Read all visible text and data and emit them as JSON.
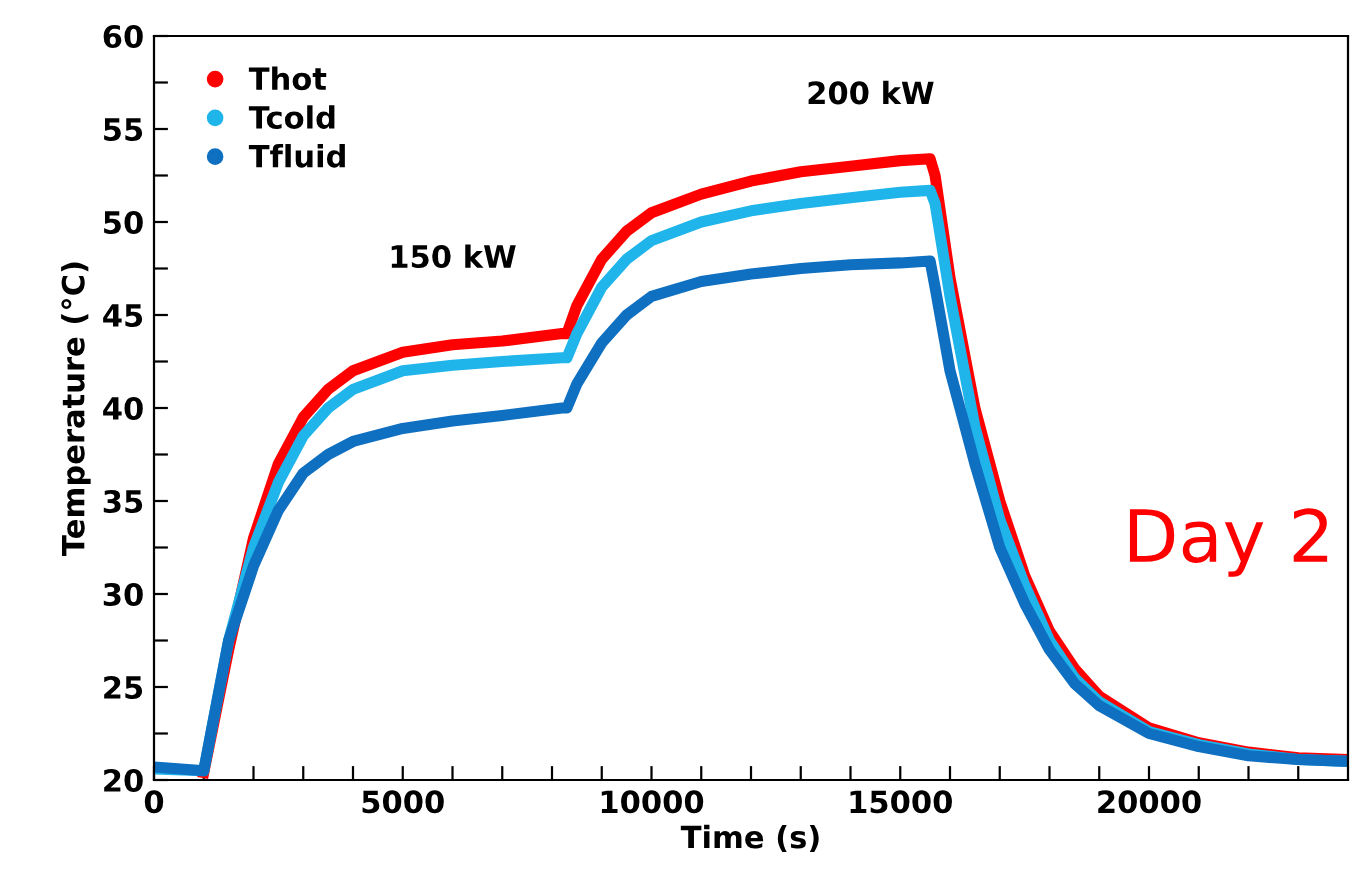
{
  "chart_data": {
    "type": "line",
    "xlabel": "Time (s)",
    "ylabel": "Temperature (°C)",
    "xlim": [
      0,
      24000
    ],
    "ylim": [
      20,
      60
    ],
    "xticks": [
      0,
      {
        "value": 1000,
        "label": null
      },
      {
        "value": 2000,
        "label": null
      },
      {
        "value": 3000,
        "label": null
      },
      {
        "value": 4000,
        "label": null
      },
      5000,
      {
        "value": 6000,
        "label": null
      },
      {
        "value": 7000,
        "label": null
      },
      {
        "value": 8000,
        "label": null
      },
      {
        "value": 9000,
        "label": null
      },
      10000,
      {
        "value": 11000,
        "label": null
      },
      {
        "value": 12000,
        "label": null
      },
      {
        "value": 13000,
        "label": null
      },
      {
        "value": 14000,
        "label": null
      },
      15000,
      {
        "value": 16000,
        "label": null
      },
      {
        "value": 17000,
        "label": null
      },
      {
        "value": 18000,
        "label": null
      },
      {
        "value": 19000,
        "label": null
      },
      20000,
      {
        "value": 21000,
        "label": null
      },
      {
        "value": 22000,
        "label": null
      },
      {
        "value": 23000,
        "label": null
      }
    ],
    "yticks": [
      20,
      {
        "value": 22.5,
        "label": null
      },
      25,
      {
        "value": 27.5,
        "label": null
      },
      30,
      {
        "value": 32.5,
        "label": null
      },
      35,
      {
        "value": 37.5,
        "label": null
      },
      40,
      {
        "value": 42.5,
        "label": null
      },
      45,
      {
        "value": 47.5,
        "label": null
      },
      50,
      {
        "value": 52.5,
        "label": null
      },
      55,
      {
        "value": 57.5,
        "label": null
      },
      60
    ],
    "grid": false,
    "legend": "top left",
    "annotations": [
      "150 kW",
      "200 kW",
      "Day 2"
    ],
    "x": [
      0,
      1000,
      1500,
      2000,
      2500,
      3000,
      3500,
      4000,
      5000,
      6000,
      7000,
      8200,
      8300,
      8500,
      9000,
      9500,
      10000,
      11000,
      12000,
      13000,
      14000,
      15000,
      15600,
      15700,
      16000,
      16500,
      17000,
      17500,
      18000,
      18500,
      19000,
      20000,
      21000,
      22000,
      23000,
      24000
    ],
    "series": [
      {
        "name": "Thot",
        "color": "#ff0000",
        "values": [
          null,
          20.4,
          27,
          33,
          37,
          39.5,
          41,
          42,
          43,
          43.4,
          43.6,
          44,
          44,
          45.5,
          48,
          49.5,
          50.5,
          51.5,
          52.2,
          52.7,
          53,
          53.3,
          53.4,
          52.5,
          47,
          40,
          35,
          31,
          28,
          26,
          24.5,
          22.8,
          22,
          21.5,
          21.2,
          21.1
        ]
      },
      {
        "name": "Tcold",
        "color": "#1fb5ea",
        "values": [
          20.6,
          20.5,
          27.5,
          32.5,
          36,
          38.5,
          40,
          41,
          42,
          42.3,
          42.5,
          42.7,
          42.7,
          44,
          46.5,
          48,
          49,
          50,
          50.6,
          51,
          51.3,
          51.6,
          51.7,
          51,
          46,
          39,
          34,
          30.5,
          27.5,
          25.5,
          24.2,
          22.6,
          21.9,
          21.4,
          21.1,
          21
        ]
      },
      {
        "name": "Tfluid",
        "color": "#0f6fc0",
        "values": [
          20.7,
          20.5,
          27.5,
          31.5,
          34.5,
          36.5,
          37.5,
          38.2,
          38.9,
          39.3,
          39.6,
          40,
          40,
          41.3,
          43.5,
          45,
          46,
          46.8,
          47.2,
          47.5,
          47.7,
          47.8,
          47.9,
          46.5,
          42,
          37,
          32.5,
          29.5,
          27,
          25.2,
          24,
          22.5,
          21.8,
          21.3,
          21.1,
          21
        ]
      }
    ]
  }
}
